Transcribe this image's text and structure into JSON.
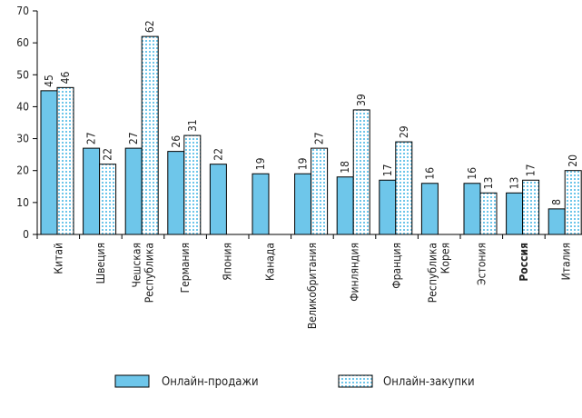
{
  "chart_data": {
    "type": "bar",
    "title": "",
    "xlabel": "",
    "ylabel": "",
    "ylim": [
      0,
      70
    ],
    "yticks": [
      0,
      10,
      20,
      30,
      40,
      50,
      60,
      70
    ],
    "grid": false,
    "legend_position": "bottom",
    "categories": [
      [
        "Китай"
      ],
      [
        "Швеция"
      ],
      [
        "Чешская",
        "Республика"
      ],
      [
        "Германия"
      ],
      [
        "Япония"
      ],
      [
        "Канада"
      ],
      [
        "Великобритания"
      ],
      [
        "Финляндия"
      ],
      [
        "Франция"
      ],
      [
        "Республика",
        "Корея"
      ],
      [
        "Эстония"
      ],
      [
        "Россия"
      ],
      [
        "Италия"
      ]
    ],
    "highlight_category": "Россия",
    "series": [
      {
        "name": "Онлайн-продажи",
        "color": "#6ec6ea",
        "pattern": "solid",
        "values": [
          45,
          27,
          27,
          26,
          22,
          19,
          19,
          18,
          17,
          16,
          16,
          13,
          8
        ]
      },
      {
        "name": "Онлайн-закупки",
        "color": "#ffffff",
        "dot_color": "#6ec6ea",
        "pattern": "dotted",
        "values": [
          46,
          22,
          62,
          31,
          null,
          null,
          27,
          39,
          29,
          null,
          13,
          17,
          20
        ]
      }
    ]
  }
}
